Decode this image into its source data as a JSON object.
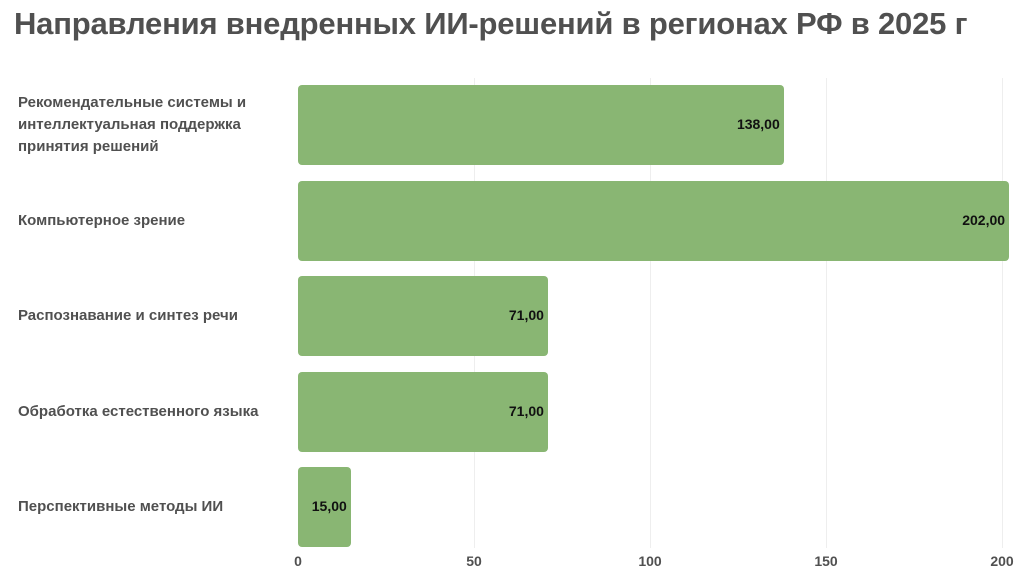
{
  "chart_data": {
    "type": "bar",
    "orientation": "horizontal",
    "title": "Направления внедренных ИИ-решений в регионах РФ в 2025 г",
    "categories": [
      "Рекомендательные системы и интеллектуальная поддержка принятия решений",
      "Компьютерное зрение",
      "Распознавание и синтез речи",
      "Обработка естественного языка",
      "Перспективные методы ИИ"
    ],
    "values": [
      138,
      202,
      71,
      71,
      15
    ],
    "value_labels": [
      "138,00",
      "202,00",
      "71,00",
      "71,00",
      "15,00"
    ],
    "xlim": [
      0,
      200
    ],
    "xticks": [
      0,
      50,
      100,
      150,
      200
    ],
    "xtick_labels": [
      "0",
      "50",
      "100",
      "150",
      "200"
    ],
    "bar_color": "#89b673",
    "grid": true,
    "legend": false
  }
}
